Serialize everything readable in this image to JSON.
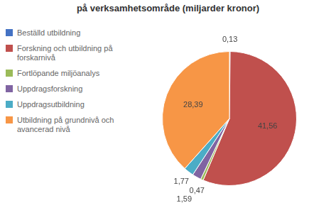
{
  "chart_data": {
    "type": "pie",
    "title": "på verksamhetsområde (miljarder kronor)",
    "categories": [
      "Beställd utbildning",
      "Forskning och utbildning på\nforskarnivå",
      "Fortlöpande miljöanalys",
      "Uppdragsforskning",
      "Uppdragsutbildning",
      "Utbildning på grundnivå och\navancerad nivå"
    ],
    "values": [
      0.13,
      41.56,
      0.47,
      1.59,
      1.77,
      28.39
    ],
    "value_labels": [
      "0,13",
      "41,56",
      "0,47",
      "1,59",
      "1,77",
      "28,39"
    ],
    "colors": [
      "#4472C4",
      "#C0504D",
      "#9BBB59",
      "#8064A2",
      "#4BACC6",
      "#F79646"
    ],
    "data_labels": true,
    "legend": "left"
  }
}
